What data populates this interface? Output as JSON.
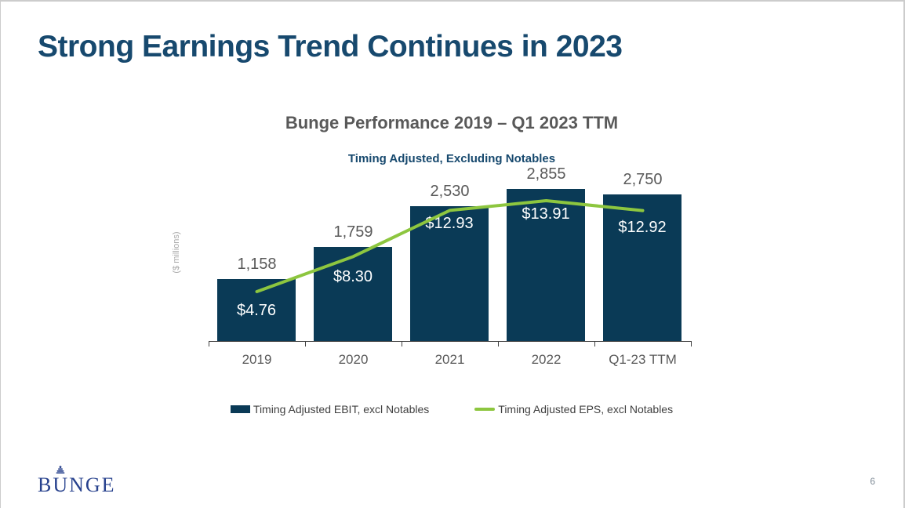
{
  "slide": {
    "title": "Strong Earnings Trend Continues in 2023"
  },
  "chart": {
    "title": "Bunge Performance 2019 – Q1 2023 TTM",
    "subtitle": "Timing Adjusted, Excluding Notables",
    "y_axis_label": "($ millions)",
    "legend": [
      {
        "label": "Timing Adjusted EBIT, excl Notables",
        "swatch": "bar"
      },
      {
        "label": "Timing Adjusted EPS, excl Notables",
        "swatch": "line"
      }
    ]
  },
  "chart_data": {
    "type": "bar",
    "title": "Bunge Performance 2019 – Q1 2023 TTM",
    "subtitle": "Timing Adjusted, Excluding Notables",
    "ylabel": "($ millions)",
    "categories": [
      "2019",
      "2020",
      "2021",
      "2022",
      "Q1-23 TTM"
    ],
    "series": [
      {
        "name": "Timing Adjusted EBIT, excl Notables",
        "type": "bar",
        "values": [
          1158,
          1759,
          2530,
          2855,
          2750
        ],
        "labels": [
          "1,158",
          "1,759",
          "2,530",
          "2,855",
          "2,750"
        ],
        "color": "#0a3a56"
      },
      {
        "name": "Timing Adjusted EPS, excl Notables",
        "type": "line",
        "values": [
          4.76,
          8.3,
          12.93,
          13.91,
          12.92
        ],
        "labels": [
          "$4.76",
          "$8.30",
          "$12.93",
          "$13.91",
          "$12.92"
        ],
        "color": "#8dc63f"
      }
    ],
    "legend_position": "bottom",
    "grid": false,
    "ylim": [
      0,
      3200
    ]
  },
  "footer": {
    "logo_text": "BUNGE",
    "page_number": "6"
  },
  "colors": {
    "bar": "#0a3a56",
    "line": "#8dc63f",
    "slide_title": "#17496e",
    "chart_title_gray": "#595959",
    "subtitle_navy": "#17496e",
    "logo_blue": "#27418d"
  }
}
